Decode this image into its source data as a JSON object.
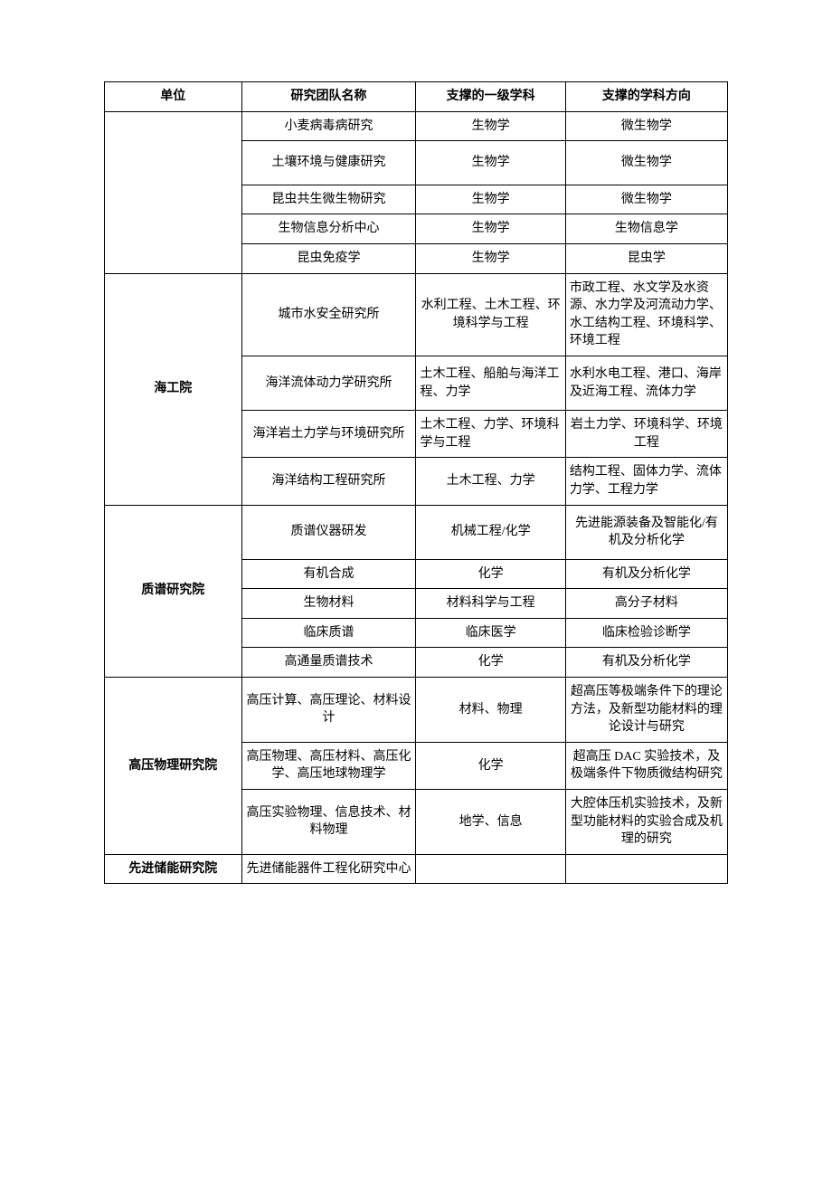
{
  "columns": {
    "c1": "单位",
    "c2": "研究团队名称",
    "c3": "支撑的一级学科",
    "c4": "支撑的学科方向"
  },
  "group0": {
    "r0": {
      "team": "小麦病毒病研究",
      "disc": "生物学",
      "dir": "微生物学"
    },
    "r1": {
      "team": "土壤环境与健康研究",
      "disc": "生物学",
      "dir": "微生物学"
    },
    "r2": {
      "team": "昆虫共生微生物研究",
      "disc": "生物学",
      "dir": "微生物学"
    },
    "r3": {
      "team": "生物信息分析中心",
      "disc": "生物学",
      "dir": "生物信息学"
    },
    "r4": {
      "team": "昆虫免疫学",
      "disc": "生物学",
      "dir": "昆虫学"
    }
  },
  "group1": {
    "unit": "海工院",
    "r0": {
      "team": "城市水安全研究所",
      "disc": "水利工程、土木工程、环境科学与工程",
      "dir": "市政工程、水文学及水资源、水力学及河流动力学、水工结构工程、环境科学、环境工程"
    },
    "r1": {
      "team": "海洋流体动力学研究所",
      "disc": "土木工程、船舶与海洋工程、力学",
      "dir": "水利水电工程、港口、海岸及近海工程、流体力学"
    },
    "r2": {
      "team": "海洋岩土力学与环境研究所",
      "disc": "土木工程、力学、环境科学与工程",
      "dir": "岩土力学、环境科学、环境工程"
    },
    "r3": {
      "team": "海洋结构工程研究所",
      "disc": "土木工程、力学",
      "dir": "结构工程、固体力学、流体力学、工程力学"
    }
  },
  "group2": {
    "unit": "质谱研究院",
    "r0": {
      "team": "质谱仪器研发",
      "disc": "机械工程/化学",
      "dir": "先进能源装备及智能化/有机及分析化学"
    },
    "r1": {
      "team": "有机合成",
      "disc": "化学",
      "dir": "有机及分析化学"
    },
    "r2": {
      "team": "生物材料",
      "disc": "材料科学与工程",
      "dir": "高分子材料"
    },
    "r3": {
      "team": "临床质谱",
      "disc": "临床医学",
      "dir": "临床检验诊断学"
    },
    "r4": {
      "team": "高通量质谱技术",
      "disc": "化学",
      "dir": "有机及分析化学"
    }
  },
  "group3": {
    "unit": "高压物理研究院",
    "r0": {
      "team": "高压计算、高压理论、材料设计",
      "disc": "材料、物理",
      "dir": "超高压等极端条件下的理论方法，及新型功能材料的理论设计与研究"
    },
    "r1": {
      "team": "高压物理、高压材料、高压化学、高压地球物理学",
      "disc": "化学",
      "dir": "超高压 DAC 实验技术，及极端条件下物质微结构研究"
    },
    "r2": {
      "team": "高压实验物理、信息技术、材料物理",
      "disc": "地学、信息",
      "dir": "大腔体压机实验技术，及新型功能材料的实验合成及机理的研究"
    }
  },
  "group4": {
    "unit": "先进储能研究院",
    "r0": {
      "team": "先进储能器件工程化研究中心",
      "disc": "",
      "dir": ""
    }
  }
}
